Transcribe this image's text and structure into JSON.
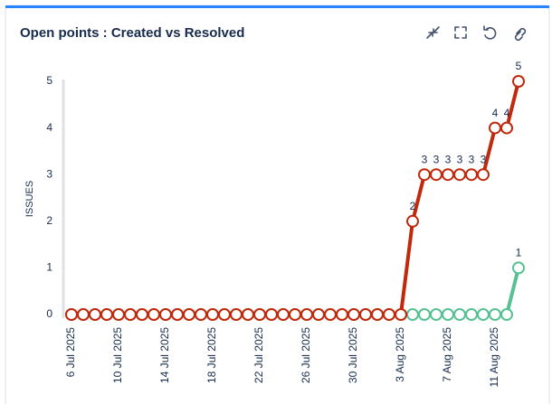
{
  "chart_data": {
    "type": "line",
    "title": "Open points : Created vs Resolved",
    "ylabel": "ISSUES",
    "categories": [
      "6 Jul 2025",
      null,
      null,
      null,
      "10 Jul 2025",
      null,
      null,
      null,
      "14 Jul 2025",
      null,
      null,
      null,
      "18 Jul 2025",
      null,
      null,
      null,
      "22 Jul 2025",
      null,
      null,
      null,
      "26 Jul 2025",
      null,
      null,
      null,
      "30 Jul 2025",
      null,
      null,
      null,
      "3 Aug 2025",
      null,
      null,
      null,
      "7 Aug 2025",
      null,
      null,
      null,
      "11 Aug 2025",
      null,
      null
    ],
    "series": [
      {
        "color": "#57c193",
        "values": [
          0,
          0,
          0,
          0,
          0,
          0,
          0,
          0,
          0,
          0,
          0,
          0,
          0,
          0,
          0,
          0,
          0,
          0,
          0,
          0,
          0,
          0,
          0,
          0,
          0,
          0,
          0,
          0,
          0,
          0,
          0,
          0,
          0,
          0,
          0,
          0,
          0,
          0,
          1
        ]
      },
      {
        "color": "#c1290c",
        "values": [
          0,
          0,
          0,
          0,
          0,
          0,
          0,
          0,
          0,
          0,
          0,
          0,
          0,
          0,
          0,
          0,
          0,
          0,
          0,
          0,
          0,
          0,
          0,
          0,
          0,
          0,
          0,
          0,
          0,
          2,
          3,
          3,
          3,
          3,
          3,
          3,
          4,
          4,
          5
        ]
      }
    ],
    "ylim": [
      0,
      5
    ],
    "yticks": [
      0,
      1,
      2,
      3,
      4,
      5
    ]
  }
}
